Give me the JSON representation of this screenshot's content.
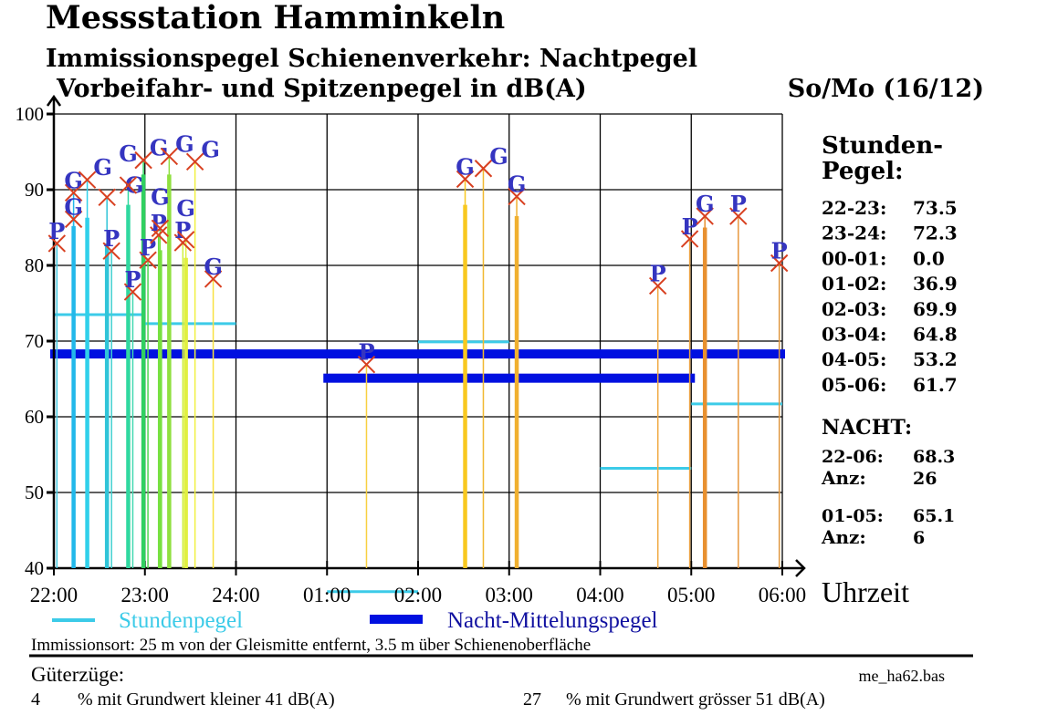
{
  "header": {
    "title": "Messstation Hamminkeln",
    "subtitle1": "Immissionspegel Schienenverkehr: Nachtpegel",
    "subtitle2": "Vorbeifahr- und Spitzenpegel in dB(A)",
    "date": "So/Mo (16/12)"
  },
  "side": {
    "heading1": "Stunden-",
    "heading2": "Pegel:",
    "hours": [
      {
        "label": "22-23:",
        "value": "73.5"
      },
      {
        "label": "23-24:",
        "value": "72.3"
      },
      {
        "label": "00-01:",
        "value": "0.0"
      },
      {
        "label": "01-02:",
        "value": "36.9"
      },
      {
        "label": "02-03:",
        "value": "69.9"
      },
      {
        "label": "03-04:",
        "value": "64.8"
      },
      {
        "label": "04-05:",
        "value": "53.2"
      },
      {
        "label": "05-06:",
        "value": "61.7"
      }
    ],
    "nacht_label": "NACHT:",
    "n1_label": "22-06:",
    "n1_value": "68.3",
    "n1_anz_label": "Anz:",
    "n1_anz": "26",
    "n2_label": "01-05:",
    "n2_value": "65.1",
    "n2_anz_label": "Anz:",
    "n2_anz": "6"
  },
  "legend": {
    "stunden": "Stundenpegel",
    "nacht": "Nacht-Mittelungspegel"
  },
  "footer": {
    "immissionsort": "Immissionsort: 25 m von der Gleismitte entfernt, 3.5 m über Schienenoberfläche",
    "gueterzuege": "Güterzüge:",
    "file": "me_ha62.bas",
    "pct_low": "4",
    "pct_low_text": "% mit Grundwert kleiner 41 dB(A)",
    "pct_high": "27",
    "pct_high_text": "% mit Grundwert grösser 51 dB(A)"
  },
  "colors": {
    "stundenpegel": "#3ccbe8",
    "nacht": "#0010e0",
    "marker": "#d84020",
    "marker_label": "#3535c0",
    "legend_nacht_text": "#1010a0"
  },
  "chart_data": {
    "type": "bar",
    "xlabel": "Uhrzeit",
    "ylabel": "",
    "ylim": [
      40,
      100
    ],
    "yticks": [
      "40",
      "50",
      "60",
      "70",
      "80",
      "90",
      "100"
    ],
    "xticks": [
      "22:00",
      "23:00",
      "24:00",
      "01:00",
      "02:00",
      "03:00",
      "04:00",
      "05:00",
      "06:00"
    ],
    "grid": true,
    "stundenpegel": [
      {
        "from": "22:00",
        "to": "23:00",
        "value": 73.5
      },
      {
        "from": "23:00",
        "to": "24:00",
        "value": 72.3
      },
      {
        "from": "01:00",
        "to": "02:00",
        "value": 36.9
      },
      {
        "from": "02:00",
        "to": "03:00",
        "value": 69.9
      },
      {
        "from": "03:00",
        "to": "04:00",
        "value": 64.8
      },
      {
        "from": "04:00",
        "to": "05:00",
        "value": 53.2
      },
      {
        "from": "05:00",
        "to": "06:00",
        "value": 61.7
      }
    ],
    "nacht_mittelungspegel": [
      {
        "from": "22:00",
        "to": "06:00",
        "value": 68.3
      },
      {
        "from": "01:00",
        "to": "05:00",
        "value": 65.1
      }
    ],
    "events": [
      {
        "time": "22:02",
        "type": "P",
        "peak": 82.9,
        "color": "#45c8e0"
      },
      {
        "time": "22:13",
        "type": "G",
        "peak": 89.6,
        "bar": 85.2,
        "color": "#22b8ea"
      },
      {
        "time": "22:13",
        "type": "G",
        "peak": 86.1,
        "color": "#22b8ea"
      },
      {
        "time": "22:22",
        "type": "G",
        "peak": 91.3,
        "bar": 86.3,
        "color": "#30d0ea"
      },
      {
        "time": "22:35",
        "type": "G",
        "peak": 89.0,
        "bar": 82.9,
        "color": "#30c4d8"
      },
      {
        "time": "22:38",
        "type": "P",
        "peak": 81.9,
        "color": "#40d0d0"
      },
      {
        "time": "22:49",
        "type": "G",
        "peak": 90.6,
        "bar": 88.0,
        "color": "#30d8a0"
      },
      {
        "time": "22:52",
        "type": "P",
        "peak": 76.5,
        "color": "#40d8b0"
      },
      {
        "time": "22:59",
        "type": "G",
        "peak": 93.9,
        "bar": 92.0,
        "color": "#30d060"
      },
      {
        "time": "23:02",
        "type": "P",
        "peak": 80.7,
        "color": "#50d850"
      },
      {
        "time": "23:09",
        "type": "P",
        "peak": 84.0,
        "color": "#60e040"
      },
      {
        "time": "23:10",
        "type": "G",
        "peak": 84.9,
        "bar": 82.0,
        "color": "#78e040"
      },
      {
        "time": "23:16",
        "type": "G",
        "peak": 94.4,
        "bar": 92.0,
        "color": "#90e040"
      },
      {
        "time": "23:25",
        "type": "P",
        "peak": 83.0,
        "color": "#d0f040"
      },
      {
        "time": "23:27",
        "type": "G",
        "peak": 83.4,
        "bar": 81.0,
        "color": "#e0f040"
      },
      {
        "time": "23:33",
        "type": "G",
        "peak": 93.7,
        "color": "#f0f040"
      },
      {
        "time": "23:45",
        "type": "G",
        "peak": 78.2,
        "color": "#f8e040"
      },
      {
        "time": "01:26",
        "type": "P",
        "peak": 66.9,
        "color": "#f8d040"
      },
      {
        "time": "02:31",
        "type": "G",
        "peak": 91.4,
        "bar": 88.0,
        "color": "#f8c820"
      },
      {
        "time": "02:43",
        "type": "G",
        "peak": 92.8,
        "color": "#f0b830"
      },
      {
        "time": "03:05",
        "type": "G",
        "peak": 89.1,
        "bar": 86.5,
        "color": "#f0b030"
      },
      {
        "time": "04:38",
        "type": "P",
        "peak": 77.3,
        "color": "#f0a840"
      },
      {
        "time": "04:59",
        "type": "P",
        "peak": 83.5,
        "color": "#e8a040"
      },
      {
        "time": "05:09",
        "type": "G",
        "peak": 86.5,
        "bar": 85.0,
        "color": "#e89030"
      },
      {
        "time": "05:31",
        "type": "P",
        "peak": 86.5,
        "color": "#e89840"
      },
      {
        "time": "05:58",
        "type": "P",
        "peak": 80.3,
        "color": "#e09840"
      }
    ]
  }
}
